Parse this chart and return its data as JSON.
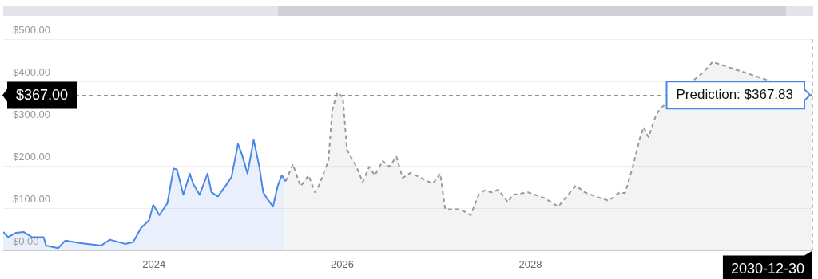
{
  "chart_data": {
    "type": "area",
    "xlim": [
      "2022-05-26",
      "2030-12-30"
    ],
    "xticks": [
      "2024",
      "2026",
      "2028"
    ],
    "ylim": [
      0,
      500
    ],
    "yticks": [
      {
        "value": 0,
        "label": "$0.00"
      },
      {
        "value": 100,
        "label": "$100.00"
      },
      {
        "value": 200,
        "label": "$200.00"
      },
      {
        "value": 300,
        "label": "$300.00"
      },
      {
        "value": 400,
        "label": "$400.00"
      },
      {
        "value": 500,
        "label": "$500.00"
      }
    ],
    "grid": "y",
    "legend": false,
    "series": [
      {
        "color": "#4a86e8",
        "line_style": "solid",
        "x": [
          "2022-05-26",
          "2022-06-14",
          "2022-07-14",
          "2022-08-14",
          "2022-09-14",
          "2022-10-30",
          "2022-11-08",
          "2022-12-25",
          "2023-01-22",
          "2023-03-18",
          "2023-06-10",
          "2023-07-14",
          "2023-09-11",
          "2023-10-12",
          "2023-11-12",
          "2023-12-13",
          "2023-12-29",
          "2024-01-22",
          "2024-02-22",
          "2024-03-17",
          "2024-03-30",
          "2024-04-24",
          "2024-05-19",
          "2024-06-01",
          "2024-06-26",
          "2024-07-27",
          "2024-08-11",
          "2024-09-05",
          "2024-10-06",
          "2024-10-28",
          "2024-11-22",
          "2024-12-07",
          "2024-12-29",
          "2025-01-22",
          "2025-02-13",
          "2025-02-28",
          "2025-03-16",
          "2025-04-07",
          "2025-04-25",
          "2025-05-11",
          "2025-05-26"
        ],
        "values": [
          44,
          32,
          42,
          44,
          32,
          32,
          12,
          6,
          24,
          18,
          12,
          26,
          16,
          20,
          54,
          72,
          108,
          84,
          112,
          194,
          192,
          132,
          182,
          158,
          132,
          182,
          138,
          128,
          154,
          174,
          252,
          228,
          182,
          262,
          198,
          138,
          122,
          104,
          152,
          178,
          164
        ]
      },
      {
        "color": "#999999",
        "line_style": "dashed",
        "x": [
          "2025-05-26",
          "2025-06-01",
          "2025-06-23",
          "2025-07-23",
          "2025-08-23",
          "2025-09-17",
          "2025-10-02",
          "2025-11-08",
          "2025-11-23",
          "2025-12-12",
          "2026-01-03",
          "2026-01-19",
          "2026-02-25",
          "2026-03-21",
          "2026-04-15",
          "2026-05-07",
          "2026-06-07",
          "2026-07-02",
          "2026-07-30",
          "2026-08-23",
          "2026-09-23",
          "2026-12-18",
          "2027-01-16",
          "2027-02-04",
          "2027-04-04",
          "2027-05-14",
          "2027-06-14",
          "2027-07-05",
          "2027-08-05",
          "2027-08-29",
          "2027-10-06",
          "2027-10-24",
          "2027-12-22",
          "2028-02-25",
          "2028-04-18",
          "2028-06-25",
          "2028-07-29",
          "2028-09-11",
          "2028-10-30",
          "2028-12-13",
          "2029-01-02",
          "2029-02-01",
          "2029-02-28",
          "2029-03-15",
          "2029-04-03",
          "2029-05-01",
          "2029-05-16",
          "2029-11-06",
          "2029-12-07",
          "2029-12-28",
          "2030-01-13",
          "2030-12-30"
        ],
        "values": [
          164,
          172,
          204,
          152,
          178,
          138,
          154,
          212,
          332,
          374,
          362,
          238,
          198,
          162,
          198,
          178,
          212,
          198,
          222,
          172,
          184,
          158,
          182,
          98,
          98,
          84,
          132,
          142,
          138,
          144,
          114,
          132,
          138,
          124,
          104,
          154,
          138,
          128,
          118,
          138,
          136,
          198,
          264,
          292,
          268,
          318,
          334,
          424,
          446,
          442,
          null,
          367.83
        ]
      }
    ],
    "ref_lines": [
      {
        "axis": "y",
        "value": 367,
        "label": "$367.00",
        "line_style": "dashed",
        "color": "#888888"
      },
      {
        "axis": "x",
        "value": "2030-12-30",
        "label": "2030-12-30",
        "line_style": "dashed",
        "color": "#888888"
      }
    ],
    "annotations": [
      {
        "text": "Prediction: $367.83",
        "x": "2030-12-30",
        "y": 367.83
      }
    ]
  }
}
